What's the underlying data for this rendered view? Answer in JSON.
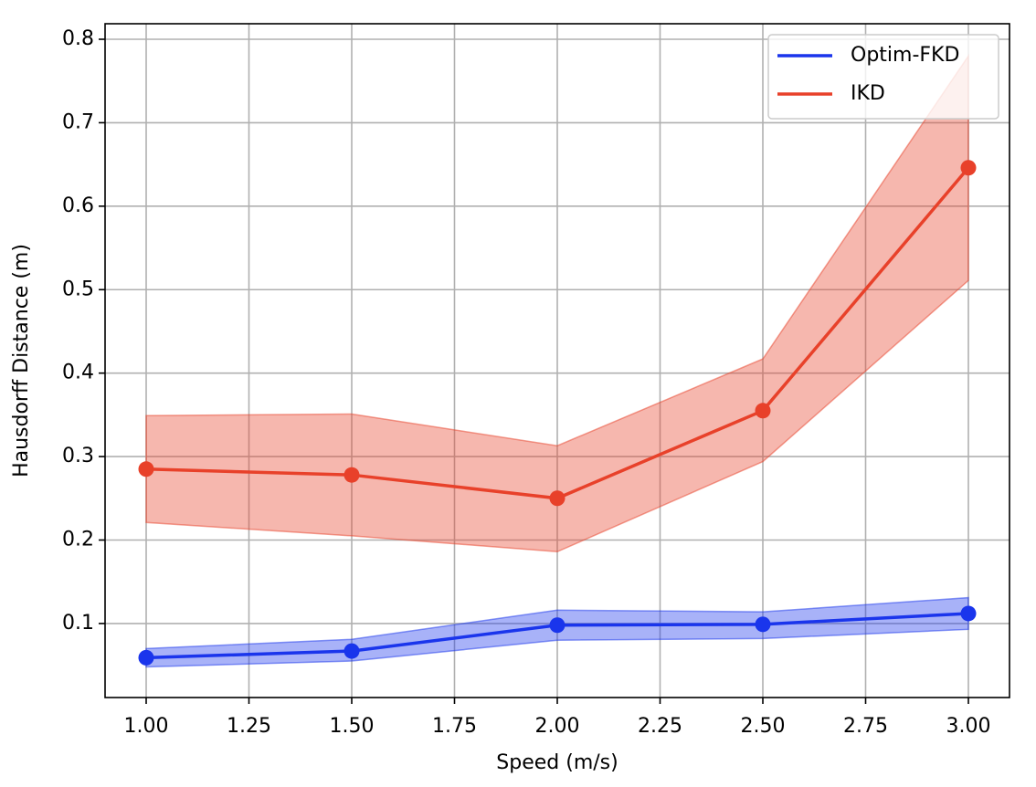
{
  "chart_data": {
    "type": "line",
    "xlabel": "Speed (m/s)",
    "ylabel": "Hausdorff Distance (m)",
    "x": [
      1.0,
      1.5,
      2.0,
      2.5,
      3.0
    ],
    "series": [
      {
        "name": "Optim-FKD",
        "color": "#1a35ec",
        "values": [
          0.059,
          0.067,
          0.098,
          0.099,
          0.112
        ],
        "lower": [
          0.048,
          0.055,
          0.08,
          0.082,
          0.093
        ],
        "upper": [
          0.07,
          0.081,
          0.116,
          0.114,
          0.131
        ]
      },
      {
        "name": "IKD",
        "color": "#e8412a",
        "values": [
          0.285,
          0.278,
          0.25,
          0.355,
          0.646
        ],
        "lower": [
          0.221,
          0.205,
          0.186,
          0.294,
          0.511
        ],
        "upper": [
          0.349,
          0.351,
          0.313,
          0.417,
          0.78
        ]
      }
    ],
    "xlim": [
      0.9,
      3.1
    ],
    "ylim": [
      0.0113,
      0.8186
    ],
    "xticks": [
      {
        "value": 1.0,
        "label": "1.00"
      },
      {
        "value": 1.25,
        "label": "1.25"
      },
      {
        "value": 1.5,
        "label": "1.50"
      },
      {
        "value": 1.75,
        "label": "1.75"
      },
      {
        "value": 2.0,
        "label": "2.00"
      },
      {
        "value": 2.25,
        "label": "2.25"
      },
      {
        "value": 2.5,
        "label": "2.50"
      },
      {
        "value": 2.75,
        "label": "2.75"
      },
      {
        "value": 3.0,
        "label": "3.00"
      }
    ],
    "yticks": [
      0.1,
      0.2,
      0.3,
      0.4,
      0.5,
      0.6,
      0.7,
      0.8
    ],
    "grid": true,
    "legend": "upper right"
  }
}
